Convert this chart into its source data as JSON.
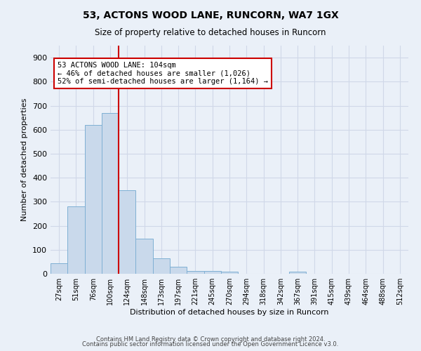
{
  "title": "53, ACTONS WOOD LANE, RUNCORN, WA7 1GX",
  "subtitle": "Size of property relative to detached houses in Runcorn",
  "xlabel": "Distribution of detached houses by size in Runcorn",
  "ylabel": "Number of detached properties",
  "footer_line1": "Contains HM Land Registry data © Crown copyright and database right 2024.",
  "footer_line2": "Contains public sector information licensed under the Open Government Licence v3.0.",
  "categories": [
    "27sqm",
    "51sqm",
    "76sqm",
    "100sqm",
    "124sqm",
    "148sqm",
    "173sqm",
    "197sqm",
    "221sqm",
    "245sqm",
    "270sqm",
    "294sqm",
    "318sqm",
    "342sqm",
    "367sqm",
    "391sqm",
    "415sqm",
    "439sqm",
    "464sqm",
    "488sqm",
    "512sqm"
  ],
  "values": [
    44,
    280,
    621,
    670,
    348,
    147,
    65,
    30,
    13,
    12,
    9,
    0,
    0,
    0,
    8,
    0,
    0,
    0,
    0,
    0,
    0
  ],
  "bar_color": "#c9d9eb",
  "bar_edge_color": "#7fb0d4",
  "vline_color": "#cc0000",
  "vline_x": 3.5,
  "annotation_text": "53 ACTONS WOOD LANE: 104sqm\n← 46% of detached houses are smaller (1,026)\n52% of semi-detached houses are larger (1,164) →",
  "annotation_box_color": "#ffffff",
  "annotation_box_edge_color": "#cc0000",
  "ylim": [
    0,
    950
  ],
  "yticks": [
    0,
    100,
    200,
    300,
    400,
    500,
    600,
    700,
    800,
    900
  ],
  "grid_color": "#d0d8e8",
  "background_color": "#eaf0f8",
  "title_fontsize": 10,
  "subtitle_fontsize": 8.5
}
